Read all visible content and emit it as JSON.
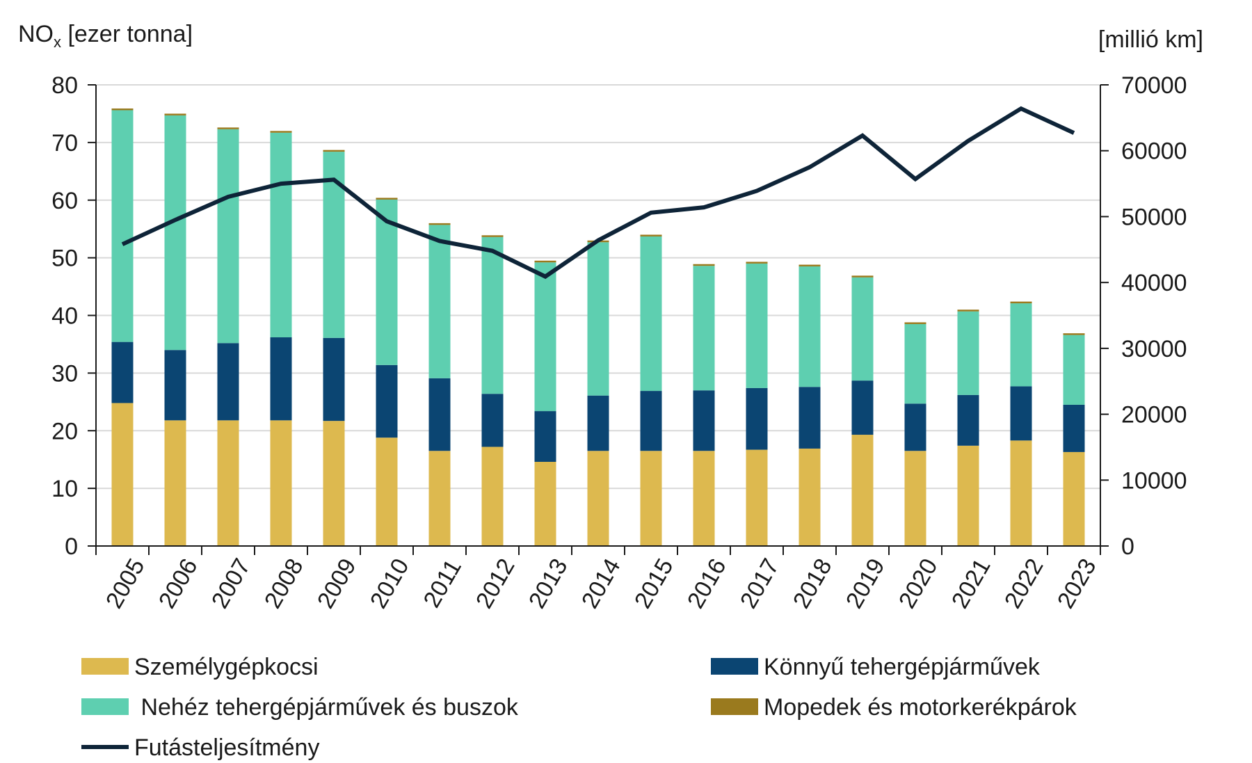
{
  "chart_data": {
    "type": "bar",
    "stacked": true,
    "title": "",
    "left_axis": {
      "title_main": "NO",
      "title_sub": "x",
      "title_rest": " [ezer tonna]",
      "ylim": [
        0,
        80
      ],
      "ticks": [
        "0",
        "10",
        "20",
        "30",
        "40",
        "50",
        "60",
        "70",
        "80"
      ]
    },
    "right_axis": {
      "title": "[millió km]",
      "ylim": [
        0,
        70000
      ],
      "ticks": [
        "0",
        "10000",
        "20000",
        "30000",
        "40000",
        "50000",
        "60000",
        "70000"
      ]
    },
    "categories": [
      "2005",
      "2006",
      "2007",
      "2008",
      "2009",
      "2010",
      "2011",
      "2012",
      "2013",
      "2014",
      "2015",
      "2016",
      "2017",
      "2018",
      "2019",
      "2020",
      "2021",
      "2022",
      "2023"
    ],
    "series": [
      {
        "name": "Személygépkocsi",
        "axis": "left",
        "kind": "bar",
        "color": "#DDB94F",
        "values": [
          24.8,
          21.8,
          21.8,
          21.8,
          21.7,
          18.8,
          16.5,
          17.2,
          14.6,
          16.5,
          16.5,
          16.5,
          16.7,
          16.9,
          19.3,
          16.5,
          17.4,
          18.3,
          16.3
        ]
      },
      {
        "name": "Könnyű tehergépjárművek",
        "axis": "left",
        "kind": "bar",
        "color": "#0B4572",
        "values": [
          10.6,
          12.2,
          13.4,
          14.4,
          14.4,
          12.6,
          12.6,
          9.2,
          8.8,
          9.6,
          10.4,
          10.5,
          10.7,
          10.7,
          9.4,
          8.2,
          8.8,
          9.4,
          8.2
        ]
      },
      {
        "name": "Nehéz tehergépjárművek és buszok",
        "axis": "left",
        "kind": "bar",
        "color": "#5ECFB0",
        "values": [
          40.2,
          40.7,
          37.1,
          35.5,
          32.3,
          28.7,
          26.6,
          27.2,
          25.8,
          26.6,
          26.8,
          21.6,
          21.6,
          20.9,
          17.9,
          13.8,
          14.5,
          14.4,
          12.1
        ]
      },
      {
        "name": "Mopedek és motorkerékpárok",
        "axis": "left",
        "kind": "bar",
        "color": "#9A7A1E",
        "values": [
          0.3,
          0.3,
          0.3,
          0.3,
          0.3,
          0.3,
          0.3,
          0.3,
          0.3,
          0.3,
          0.3,
          0.3,
          0.3,
          0.3,
          0.3,
          0.3,
          0.3,
          0.3,
          0.3
        ]
      },
      {
        "name": "Futásteljesítmény",
        "axis": "right",
        "kind": "line",
        "color": "#0E2438",
        "values": [
          45800,
          49500,
          53000,
          55000,
          55600,
          49300,
          46300,
          44800,
          40900,
          46400,
          50600,
          51400,
          53900,
          57500,
          62300,
          55700,
          61500,
          66400,
          62700
        ]
      }
    ],
    "legend": {
      "placement": "bottom",
      "items": [
        {
          "label": "Személygépkocsi",
          "color": "#DDB94F",
          "kind": "bar"
        },
        {
          "label": "Könnyű tehergépjárművek",
          "color": "#0B4572",
          "kind": "bar"
        },
        {
          "label": " Nehéz tehergépjárművek és buszok",
          "color": "#5ECFB0",
          "kind": "bar"
        },
        {
          "label": "Mopedek és motorkerékpárok",
          "color": "#9A7A1E",
          "kind": "bar"
        },
        {
          "label": "Futásteljesítmény",
          "color": "#0E2438",
          "kind": "line"
        }
      ]
    },
    "grid": true,
    "colors": {
      "grid": "#d9d9d9",
      "axis": "#1a1a1a"
    }
  }
}
